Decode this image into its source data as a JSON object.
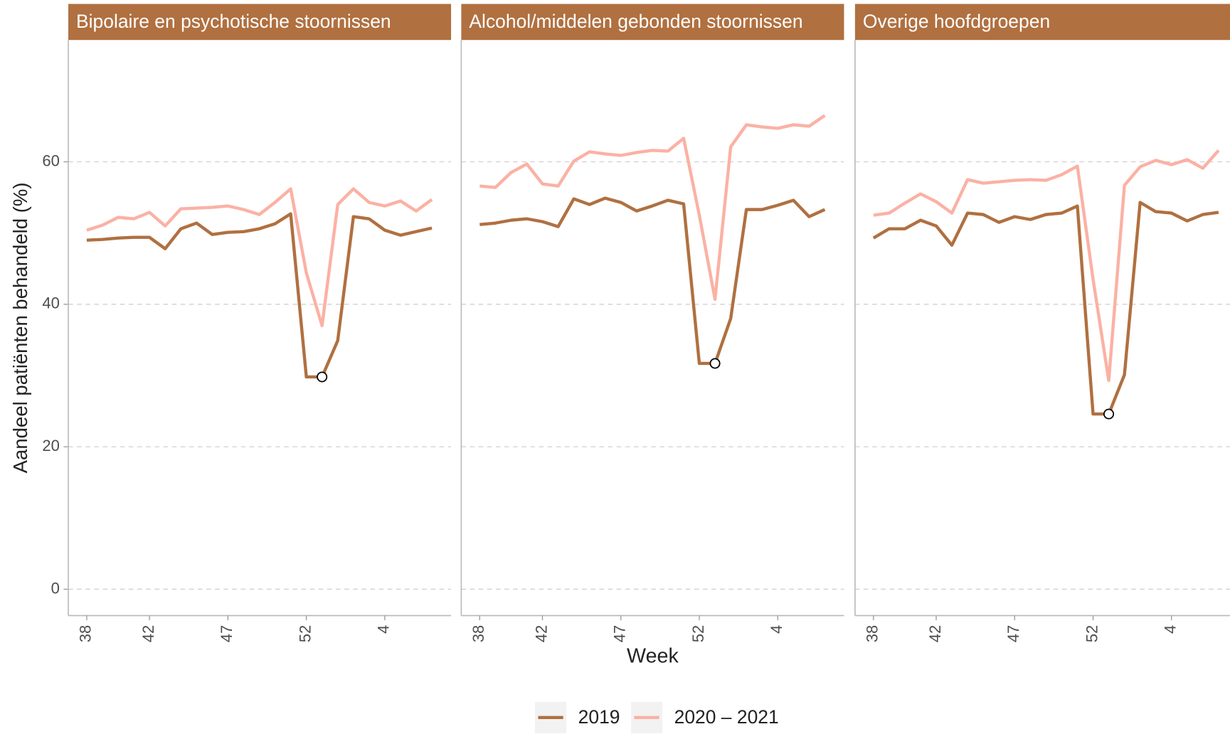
{
  "chart_data": {
    "type": "line",
    "ylabel": "Aandeel patiënten behandeld (%)",
    "xlabel": "Week",
    "ylim": [
      -3.7,
      77.1
    ],
    "yticks": [
      0,
      20,
      40,
      60
    ],
    "grid": true,
    "legend": "bottom",
    "categories": [
      38,
      null,
      null,
      null,
      42,
      null,
      null,
      null,
      null,
      47,
      null,
      null,
      null,
      null,
      52,
      null,
      null,
      null,
      null,
      4,
      null,
      null,
      null
    ],
    "series": [
      {
        "name": "2019",
        "color": "#b07040"
      },
      {
        "name": "2020 – 2021",
        "color": "#fbb1a4"
      }
    ],
    "facets": [
      {
        "title": "Bipolaire en psychotische stoornissen",
        "series": [
          {
            "markers": [
              15
            ],
            "values": [
              49.0,
              49.1,
              49.3,
              49.4,
              49.4,
              47.8,
              50.6,
              51.4,
              49.8,
              50.1,
              50.2,
              50.6,
              51.3,
              52.7,
              29.8,
              29.8,
              34.9,
              52.3,
              52.0,
              50.4,
              49.7,
              50.2,
              50.7
            ]
          },
          {
            "values": [
              50.4,
              51.1,
              52.2,
              52.0,
              52.9,
              51.0,
              53.4,
              53.5,
              53.6,
              53.8,
              53.3,
              52.6,
              54.3,
              56.2,
              44.4,
              37.0,
              54.0,
              56.2,
              54.3,
              53.8,
              54.5,
              53.1,
              54.7
            ]
          }
        ]
      },
      {
        "title": "Alcohol/middelen gebonden stoornissen",
        "series": [
          {
            "markers": [
              15
            ],
            "values": [
              51.2,
              51.4,
              51.8,
              52.0,
              51.6,
              50.9,
              54.8,
              54.0,
              54.9,
              54.3,
              53.1,
              53.8,
              54.6,
              54.1,
              31.7,
              31.7,
              38.0,
              53.3,
              53.3,
              53.9,
              54.6,
              52.3,
              53.3
            ]
          },
          {
            "values": [
              56.6,
              56.4,
              58.5,
              59.7,
              56.9,
              56.6,
              60.1,
              61.4,
              61.1,
              60.9,
              61.3,
              61.6,
              61.5,
              63.3,
              52.5,
              40.7,
              62.1,
              65.2,
              64.9,
              64.7,
              65.2,
              65.0,
              66.5
            ]
          }
        ]
      },
      {
        "title": "Overige hoofdgroepen",
        "series": [
          {
            "markers": [
              15
            ],
            "values": [
              49.3,
              50.6,
              50.6,
              51.8,
              51.0,
              48.3,
              52.8,
              52.6,
              51.5,
              52.3,
              51.9,
              52.6,
              52.8,
              53.8,
              24.6,
              24.6,
              30.1,
              54.3,
              53.0,
              52.8,
              51.7,
              52.6,
              52.9
            ]
          },
          {
            "values": [
              52.5,
              52.8,
              54.2,
              55.5,
              54.4,
              52.8,
              57.5,
              57.0,
              57.2,
              57.4,
              57.5,
              57.4,
              58.2,
              59.4,
              43.5,
              29.3,
              56.7,
              59.3,
              60.2,
              59.6,
              60.3,
              59.1,
              61.6
            ]
          }
        ]
      }
    ]
  }
}
